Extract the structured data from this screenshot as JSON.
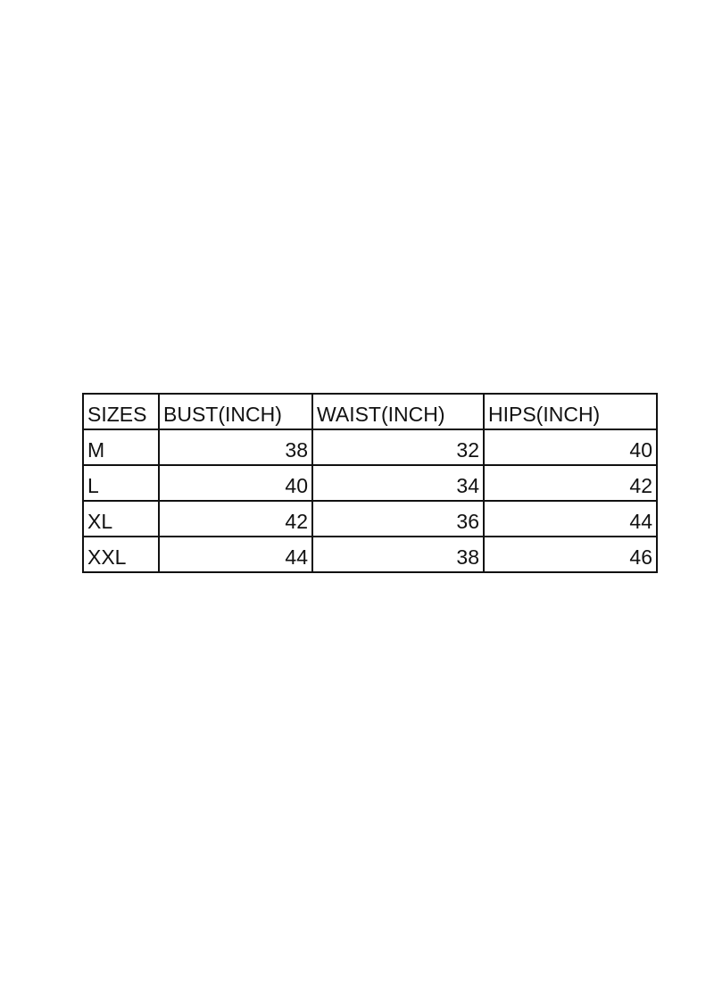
{
  "table": {
    "header": [
      "SIZES",
      "BUST(INCH)",
      "WAIST(INCH)",
      "HIPS(INCH)"
    ],
    "rows": [
      [
        "M",
        38,
        32,
        40
      ],
      [
        "L",
        40,
        34,
        42
      ],
      [
        "XL",
        42,
        36,
        44
      ],
      [
        "XXL",
        44,
        38,
        46
      ]
    ]
  }
}
